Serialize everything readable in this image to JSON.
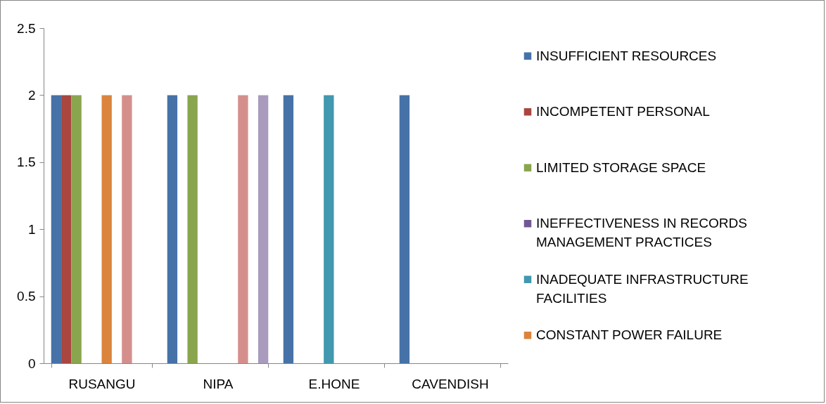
{
  "chart_data": {
    "type": "bar",
    "categories": [
      "RUSANGU",
      "NIPA",
      "E.HONE",
      "CAVENDISH"
    ],
    "series": [
      {
        "name": "INSUFFICIENT RESOURCES",
        "color": "#4672a8",
        "values": [
          2,
          2,
          2,
          2
        ]
      },
      {
        "name": "INCOMPETENT PERSONAL",
        "color": "#a9463f",
        "values": [
          2,
          0,
          0,
          0
        ]
      },
      {
        "name": "LIMITED STORAGE SPACE",
        "color": "#89a54e",
        "values": [
          2,
          2,
          0,
          0
        ]
      },
      {
        "name": "INEFFECTIVENESS IN RECORDS MANAGEMENT PRACTICES",
        "color": "#71588f",
        "values": [
          0,
          0,
          0,
          0
        ]
      },
      {
        "name": "INADEQUATE INFRASTRUCTURE FACILITIES",
        "color": "#4198af",
        "values": [
          0,
          0,
          2,
          0
        ]
      },
      {
        "name": "CONSTANT POWER FAILURE",
        "color": "#db843d",
        "values": [
          2,
          0,
          0,
          0
        ]
      },
      {
        "color": "#93a9cf",
        "values": [
          null,
          null,
          null,
          null
        ]
      },
      {
        "color": "#d48f8d",
        "values": [
          2,
          2,
          0,
          0
        ]
      },
      {
        "color": "#b9cd96",
        "values": [
          null,
          null,
          null,
          null
        ]
      },
      {
        "color": "#a99bbd",
        "values": [
          0,
          2,
          0,
          0
        ]
      }
    ],
    "ylim": [
      0,
      2.5
    ],
    "yticks": [
      0,
      0.5,
      1,
      1.5,
      2,
      2.5
    ],
    "grid": false,
    "legend": "right"
  }
}
